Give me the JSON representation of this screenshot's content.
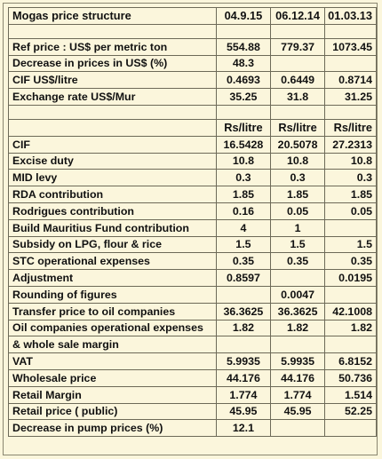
{
  "title": "Mogas price structure",
  "dates": [
    "04.9.15",
    "06.12.14",
    "01.03.13"
  ],
  "section1": [
    {
      "label": "Ref price : US$ per metric ton",
      "values": [
        "554.88",
        "779.37",
        "1073.45"
      ]
    },
    {
      "label": "Decrease in prices in US$ (%)",
      "values": [
        "48.3",
        "",
        ""
      ]
    },
    {
      "label": "CIF US$/litre",
      "values": [
        "0.4693",
        "0.6449",
        "0.8714"
      ]
    },
    {
      "label": "Exchange rate US$/Mur",
      "values": [
        "35.25",
        "31.8",
        "31.25"
      ]
    }
  ],
  "units": [
    "Rs/litre",
    "Rs/litre",
    "Rs/litre"
  ],
  "section2": [
    {
      "label": "CIF",
      "values": [
        "16.5428",
        "20.5078",
        "27.2313"
      ]
    },
    {
      "label": "Excise duty",
      "values": [
        "10.8",
        "10.8",
        "10.8"
      ]
    },
    {
      "label": "MID levy",
      "values": [
        "0.3",
        "0.3",
        "0.3"
      ]
    },
    {
      "label": "RDA contribution",
      "values": [
        "1.85",
        "1.85",
        "1.85"
      ]
    },
    {
      "label": "Rodrigues contribution",
      "values": [
        "0.16",
        "0.05",
        "0.05"
      ]
    },
    {
      "label": "Build Mauritius Fund contribution",
      "values": [
        "4",
        "1",
        ""
      ]
    },
    {
      "label": "Subsidy on LPG, flour & rice",
      "values": [
        "1.5",
        "1.5",
        "1.5"
      ]
    },
    {
      "label": "STC operational expenses",
      "values": [
        "0.35",
        "0.35",
        "0.35"
      ]
    },
    {
      "label": "Adjustment",
      "values": [
        "0.8597",
        "",
        "0.0195"
      ]
    },
    {
      "label": "Rounding of figures",
      "values": [
        "",
        "0.0047",
        ""
      ]
    },
    {
      "label": "Transfer price to oil companies",
      "values": [
        "36.3625",
        "36.3625",
        "42.1008"
      ]
    },
    {
      "label": "Oil companies operational expenses",
      "values": [
        "1.82",
        "1.82",
        "1.82"
      ]
    },
    {
      "label": "& whole sale margin",
      "values": [
        "",
        "",
        ""
      ]
    },
    {
      "label": "VAT",
      "values": [
        "5.9935",
        "5.9935",
        "6.8152"
      ]
    },
    {
      "label": "Wholesale price",
      "values": [
        "44.176",
        "44.176",
        "50.736"
      ]
    },
    {
      "label": "Retail Margin",
      "values": [
        "1.774",
        "1.774",
        "1.514"
      ]
    },
    {
      "label": "Retail price ( public)",
      "values": [
        "45.95",
        "45.95",
        "52.25"
      ]
    },
    {
      "label": "Decrease in pump prices (%)",
      "values": [
        "12.1",
        "",
        ""
      ]
    }
  ]
}
